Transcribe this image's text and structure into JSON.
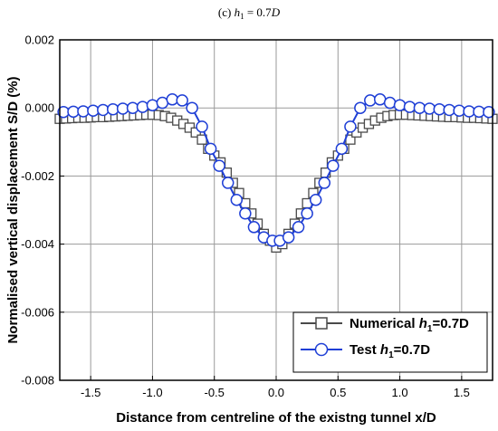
{
  "chart_data": {
    "type": "line",
    "panel_label": "(c)",
    "panel_var": "h",
    "panel_sub": "1",
    "panel_eq": " = 0.7",
    "panel_unit": "D",
    "xlabel": "Distance from centreline of the existng tunnel x/D",
    "ylabel": "Normalised vertical displacement S/D (%)",
    "xlim": [
      -1.75,
      1.75
    ],
    "ylim": [
      -0.008,
      0.002
    ],
    "xticks": [
      -1.5,
      -1.0,
      -0.5,
      0.0,
      0.5,
      1.0,
      1.5
    ],
    "xtick_labels": [
      "-1.5",
      "-1.0",
      "-0.5",
      "0.0",
      "0.5",
      "1.0",
      "1.5"
    ],
    "yticks": [
      -0.008,
      -0.006,
      -0.004,
      -0.002,
      0.0,
      0.002
    ],
    "ytick_labels": [
      "-0.008",
      "-0.006",
      "-0.004",
      "-0.002",
      "0.000",
      "0.002"
    ],
    "grid": true,
    "legend_position": "bottom-right",
    "series": [
      {
        "legend_prefix": "Numerical ",
        "legend_var": "h",
        "legend_sub": "1",
        "legend_suffix": "=0.7D",
        "color": "#4a4a4a",
        "marker": "square",
        "points": [
          [
            -1.75,
            -0.00032
          ],
          [
            -1.7,
            -0.00031
          ],
          [
            -1.65,
            -0.0003
          ],
          [
            -1.6,
            -0.00029
          ],
          [
            -1.55,
            -0.00029
          ],
          [
            -1.5,
            -0.00028
          ],
          [
            -1.45,
            -0.00027
          ],
          [
            -1.4,
            -0.00027
          ],
          [
            -1.35,
            -0.00026
          ],
          [
            -1.3,
            -0.00025
          ],
          [
            -1.25,
            -0.00024
          ],
          [
            -1.2,
            -0.00023
          ],
          [
            -1.15,
            -0.00022
          ],
          [
            -1.1,
            -0.00021
          ],
          [
            -1.05,
            -0.0002
          ],
          [
            -1.0,
            -0.0002
          ],
          [
            -0.95,
            -0.00021
          ],
          [
            -0.9,
            -0.00024
          ],
          [
            -0.85,
            -0.00029
          ],
          [
            -0.8,
            -0.00037
          ],
          [
            -0.75,
            -0.00047
          ],
          [
            -0.7,
            -0.00058
          ],
          [
            -0.65,
            -0.00072
          ],
          [
            -0.6,
            -0.00093
          ],
          [
            -0.55,
            -0.0012
          ],
          [
            -0.5,
            -0.0014
          ],
          [
            -0.45,
            -0.0016
          ],
          [
            -0.4,
            -0.0019
          ],
          [
            -0.35,
            -0.0022
          ],
          [
            -0.3,
            -0.0025
          ],
          [
            -0.25,
            -0.0028
          ],
          [
            -0.2,
            -0.0031
          ],
          [
            -0.15,
            -0.0034
          ],
          [
            -0.1,
            -0.0037
          ],
          [
            -0.05,
            -0.0039
          ],
          [
            0.0,
            -0.0041
          ],
          [
            0.05,
            -0.004
          ],
          [
            0.1,
            -0.0037
          ],
          [
            0.15,
            -0.0034
          ],
          [
            0.2,
            -0.0031
          ],
          [
            0.25,
            -0.0028
          ],
          [
            0.3,
            -0.0025
          ],
          [
            0.35,
            -0.0022
          ],
          [
            0.4,
            -0.0019
          ],
          [
            0.45,
            -0.0016
          ],
          [
            0.5,
            -0.0014
          ],
          [
            0.55,
            -0.0012
          ],
          [
            0.6,
            -0.00093
          ],
          [
            0.65,
            -0.00072
          ],
          [
            0.7,
            -0.00058
          ],
          [
            0.75,
            -0.00047
          ],
          [
            0.8,
            -0.00037
          ],
          [
            0.85,
            -0.00029
          ],
          [
            0.9,
            -0.00024
          ],
          [
            0.95,
            -0.00021
          ],
          [
            1.0,
            -0.0002
          ],
          [
            1.05,
            -0.0002
          ],
          [
            1.1,
            -0.00021
          ],
          [
            1.15,
            -0.00022
          ],
          [
            1.2,
            -0.00023
          ],
          [
            1.25,
            -0.00024
          ],
          [
            1.3,
            -0.00025
          ],
          [
            1.35,
            -0.00026
          ],
          [
            1.4,
            -0.00027
          ],
          [
            1.45,
            -0.00027
          ],
          [
            1.5,
            -0.00028
          ],
          [
            1.55,
            -0.00029
          ],
          [
            1.6,
            -0.00029
          ],
          [
            1.65,
            -0.0003
          ],
          [
            1.7,
            -0.00031
          ],
          [
            1.75,
            -0.00032
          ]
        ]
      },
      {
        "legend_prefix": "Test ",
        "legend_var": "h",
        "legend_sub": "1",
        "legend_suffix": "=0.7D",
        "color": "#1f3fd6",
        "marker": "circle",
        "points": [
          [
            -1.72,
            -0.00012
          ],
          [
            -1.64,
            -0.00011
          ],
          [
            -1.56,
            -0.0001
          ],
          [
            -1.48,
            -8e-05
          ],
          [
            -1.4,
            -6e-05
          ],
          [
            -1.32,
            -4e-05
          ],
          [
            -1.24,
            -2e-05
          ],
          [
            -1.16,
            0.0
          ],
          [
            -1.08,
            3e-05
          ],
          [
            -1.0,
            8e-05
          ],
          [
            -0.92,
            0.00015
          ],
          [
            -0.84,
            0.00025
          ],
          [
            -0.76,
            0.00022
          ],
          [
            -0.68,
            0.0
          ],
          [
            -0.6,
            -0.00055
          ],
          [
            -0.53,
            -0.0012
          ],
          [
            -0.46,
            -0.0017
          ],
          [
            -0.39,
            -0.0022
          ],
          [
            -0.32,
            -0.0027
          ],
          [
            -0.25,
            -0.0031
          ],
          [
            -0.18,
            -0.0035
          ],
          [
            -0.1,
            -0.0038
          ],
          [
            -0.03,
            -0.0039
          ],
          [
            0.03,
            -0.0039
          ],
          [
            0.1,
            -0.0038
          ],
          [
            0.18,
            -0.0035
          ],
          [
            0.25,
            -0.0031
          ],
          [
            0.32,
            -0.0027
          ],
          [
            0.39,
            -0.0022
          ],
          [
            0.46,
            -0.0017
          ],
          [
            0.53,
            -0.0012
          ],
          [
            0.6,
            -0.00055
          ],
          [
            0.68,
            0.0
          ],
          [
            0.76,
            0.00022
          ],
          [
            0.84,
            0.00025
          ],
          [
            0.92,
            0.00015
          ],
          [
            1.0,
            8e-05
          ],
          [
            1.08,
            3e-05
          ],
          [
            1.16,
            0.0
          ],
          [
            1.24,
            -2e-05
          ],
          [
            1.32,
            -4e-05
          ],
          [
            1.4,
            -6e-05
          ],
          [
            1.48,
            -8e-05
          ],
          [
            1.56,
            -0.0001
          ],
          [
            1.64,
            -0.00011
          ],
          [
            1.72,
            -0.00012
          ]
        ]
      }
    ]
  }
}
